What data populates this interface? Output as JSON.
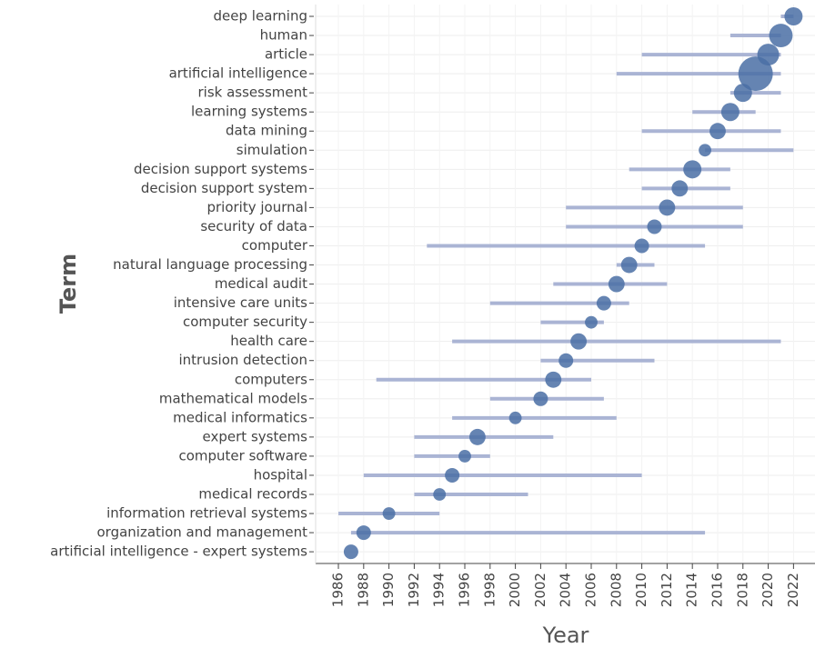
{
  "chart_data": {
    "type": "trend-topics",
    "x_axis_label": "Year",
    "y_axis_label": "Term",
    "categories": [
      "deep learning",
      "human",
      "article",
      "artificial intelligence",
      "risk assessment",
      "learning systems",
      "data mining",
      "simulation",
      "decision support systems",
      "decision support system",
      "priority journal",
      "security of data",
      "computer",
      "natural language processing",
      "medical audit",
      "intensive care units",
      "computer security",
      "health care",
      "intrusion detection",
      "computers",
      "mathematical models",
      "medical informatics",
      "expert systems",
      "computer software",
      "hospital",
      "medical records",
      "information retrieval systems",
      "organization and management",
      "artificial intelligence - expert systems"
    ],
    "start": [
      2021,
      2017,
      2010,
      2008,
      2017,
      2014,
      2010,
      2015,
      2009,
      2010,
      2004,
      2004,
      1993,
      2008,
      2003,
      1998,
      2002,
      1995,
      2002,
      1989,
      1998,
      1995,
      1992,
      1992,
      1988,
      1992,
      1986,
      1987,
      1987
    ],
    "median": [
      2022,
      2021,
      2020,
      2019,
      2018,
      2017,
      2016,
      2015,
      2014,
      2013,
      2012,
      2011,
      2010,
      2009,
      2008,
      2007,
      2006,
      2005,
      2004,
      2003,
      2002,
      2000,
      1997,
      1996,
      1995,
      1994,
      1990,
      1988,
      1987
    ],
    "end": [
      2022,
      2021,
      2021,
      2021,
      2021,
      2019,
      2021,
      2022,
      2017,
      2017,
      2018,
      2018,
      2015,
      2011,
      2012,
      2009,
      2007,
      2021,
      2011,
      2006,
      2007,
      2008,
      2003,
      1998,
      2010,
      2001,
      1994,
      2015,
      1987
    ],
    "sizes": [
      25,
      42,
      36,
      90,
      25,
      25,
      20,
      12,
      25,
      20,
      20,
      16,
      16,
      20,
      20,
      16,
      12,
      20,
      16,
      20,
      16,
      12,
      20,
      12,
      16,
      12,
      12,
      16,
      16
    ],
    "line_color": "#aab4d4",
    "point_color": "#4a6fa5",
    "xlim": [
      1984.2,
      2023.7
    ],
    "xticks": [
      1986,
      1988,
      1990,
      1992,
      1994,
      1996,
      1998,
      2000,
      2002,
      2004,
      2006,
      2008,
      2010,
      2012,
      2014,
      2016,
      2018,
      2020,
      2022
    ],
    "grid": true
  }
}
